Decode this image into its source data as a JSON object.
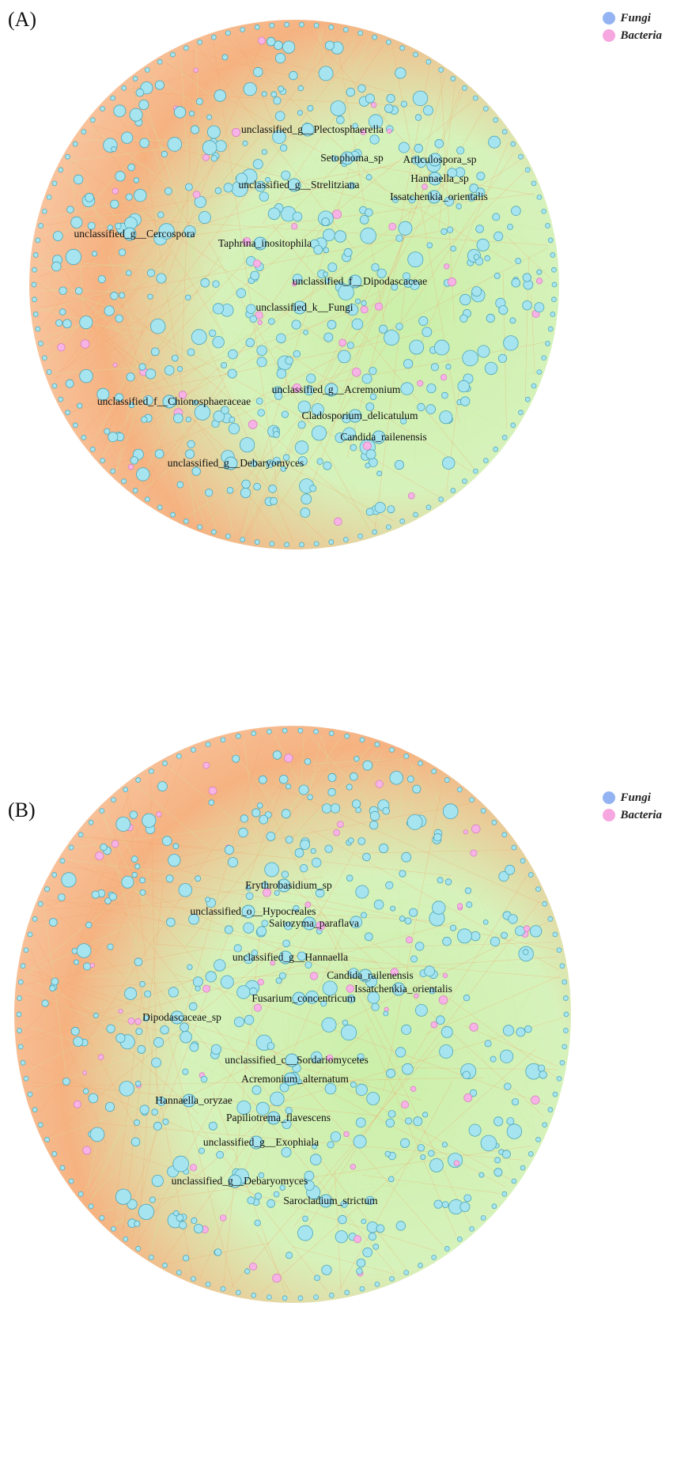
{
  "colors": {
    "fungi": "#a6e4ef",
    "fungi_stroke": "#4da6b8",
    "bacteria": "#f7b3e6",
    "bacteria_stroke": "#d783c0",
    "edge_orange": "#f4a56b",
    "edge_green": "#c9eea5",
    "legend_fungi": "#93b3f2",
    "legend_bacteria": "#f6a7df"
  },
  "legend": {
    "fungi": "Fungi",
    "bacteria": "Bacteria"
  },
  "panels": [
    {
      "letter": "(A)",
      "labels": [
        "unclassified_g__Plectosphaerella",
        "Setophoma_sp",
        "Articulospora_sp",
        "Hannaella_sp",
        "unclassified_g__Strelitziana",
        "Issatchenkia_orientalis",
        "unclassified_g__Cercospora",
        "Taphrina_inositophila",
        "unclassified_f__Dipodascaceae",
        "unclassified_k__Fungi",
        "unclassified_g__Acremonium",
        "unclassified_f__Chionosphaeraceae",
        "Cladosporium_delicatulum",
        "Candida_railenensis",
        "unclassified_g__Debaryomyces"
      ]
    },
    {
      "letter": "(B)",
      "labels": [
        "Erythrobasidium_sp",
        "unclassified_o__Hypocreales",
        "Saitozyma_paraflava",
        "unclassified_g__Hannaella",
        "Candida_railenensis",
        "Issatchenkia_orientalis",
        "Fusarium_concentricum",
        "Dipodascaceae_sp",
        "unclassified_c__Sordariomycetes",
        "Acremonium_alternatum",
        "Hannaella_oryzae",
        "Papiliotrema_flavescens",
        "unclassified_g__Exophiala",
        "unclassified_g__Debaryomyces",
        "Sarocladium_strictum"
      ]
    }
  ]
}
